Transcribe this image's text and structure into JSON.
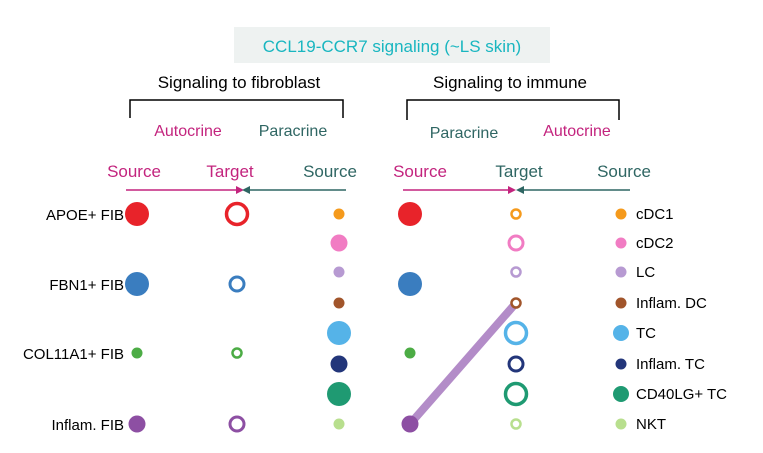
{
  "title": "CCL19-CCR7 signaling (~LS skin)",
  "left_panel": {
    "header": "Signaling to fibroblast",
    "autocrine_label": "Autocrine",
    "paracrine_label": "Paracrine",
    "source_left_label": "Source",
    "target_label": "Target",
    "source_right_label": "Source"
  },
  "right_panel": {
    "header": "Signaling to immune",
    "paracrine_label": "Paracrine",
    "autocrine_label": "Autocrine",
    "source_left_label": "Source",
    "target_label": "Target",
    "source_right_label": "Source"
  },
  "fibroblast_groups": [
    {
      "name": "APOE+ FIB",
      "color": "#e8232a",
      "source_size": "large",
      "target_size": "large"
    },
    {
      "name": "FBN1+ FIB",
      "color": "#3a7dbf",
      "source_size": "large",
      "target_size": "medium"
    },
    {
      "name": "COL11A1+ FIB",
      "color": "#4cac45",
      "source_size": "small",
      "target_size": "small"
    },
    {
      "name": "Inflam. FIB",
      "color": "#8d4fa3",
      "source_size": "medium",
      "target_size": "medium"
    }
  ],
  "immune_groups": [
    {
      "name": "cDC1",
      "color": "#f59a1c",
      "size": "small"
    },
    {
      "name": "cDC2",
      "color": "#f17cc3",
      "size": "medium"
    },
    {
      "name": "LC",
      "color": "#b79ad2",
      "size": "small"
    },
    {
      "name": "Inflam. DC",
      "color": "#a1552b",
      "size": "small"
    },
    {
      "name": "TC",
      "color": "#55b3e8",
      "size": "large"
    },
    {
      "name": "Inflam. TC",
      "color": "#23367a",
      "size": "medium"
    },
    {
      "name": "CD40LG+ TC",
      "color": "#1f9a72",
      "size": "large"
    },
    {
      "name": "NKT",
      "color": "#b8df8e",
      "size": "small"
    }
  ],
  "edges": [
    {
      "from": "Inflam. FIB",
      "to": "Inflam. DC",
      "color": "#b38cc8"
    }
  ],
  "colors": {
    "title": "#19b6c0",
    "autocrine": "#c3247e",
    "paracrine": "#2f6663",
    "header_text": "#000000"
  }
}
